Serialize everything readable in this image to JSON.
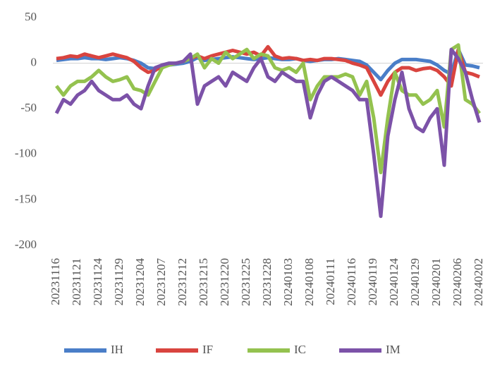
{
  "chart_data": {
    "type": "line",
    "categories": [
      "20231116",
      null,
      null,
      "20231121",
      null,
      null,
      "20231124",
      null,
      null,
      "20231129",
      null,
      null,
      "20231204",
      null,
      null,
      "20231207",
      null,
      null,
      "20231212",
      null,
      null,
      "20231215",
      null,
      null,
      "20231220",
      null,
      null,
      "20231225",
      null,
      null,
      "20231228",
      null,
      null,
      "20240103",
      null,
      null,
      "20240108",
      null,
      null,
      "20240111",
      null,
      null,
      "20240116",
      null,
      null,
      "20240119",
      null,
      null,
      "20240124",
      null,
      null,
      "20240129",
      null,
      null,
      "20240201",
      null,
      null,
      "20240206",
      null,
      null,
      "20240202"
    ],
    "series": [
      {
        "name": "IH",
        "color": "#4a7ec8",
        "values": [
          3,
          4,
          5,
          5,
          6,
          5,
          5,
          4,
          5,
          6,
          5,
          3,
          0,
          -5,
          -6,
          -3,
          -2,
          -1,
          0,
          2,
          6,
          3,
          4,
          5,
          6,
          7,
          6,
          5,
          4,
          5,
          6,
          5,
          4,
          4,
          5,
          3,
          2,
          3,
          4,
          4,
          5,
          4,
          3,
          2,
          -2,
          -10,
          -18,
          -8,
          0,
          4,
          4,
          4,
          3,
          2,
          -2,
          -8,
          -12,
          15,
          -2,
          -3,
          -5
        ]
      },
      {
        "name": "IF",
        "color": "#d9443f",
        "values": [
          5,
          6,
          8,
          7,
          10,
          8,
          6,
          8,
          10,
          8,
          6,
          2,
          -5,
          -10,
          -8,
          -3,
          -1,
          0,
          2,
          5,
          8,
          5,
          8,
          10,
          12,
          14,
          12,
          10,
          12,
          8,
          18,
          8,
          5,
          6,
          5,
          3,
          4,
          3,
          5,
          5,
          4,
          3,
          0,
          -2,
          -5,
          -20,
          -35,
          -20,
          -10,
          -5,
          -5,
          -8,
          -6,
          -5,
          -8,
          -15,
          -25,
          15,
          -10,
          -12,
          -15
        ]
      },
      {
        "name": "IC",
        "color": "#94c24f",
        "values": [
          -25,
          -35,
          -25,
          -20,
          -20,
          -15,
          -8,
          -15,
          -20,
          -18,
          -15,
          -28,
          -30,
          -35,
          -20,
          -5,
          -2,
          0,
          2,
          5,
          10,
          -5,
          5,
          0,
          12,
          5,
          10,
          15,
          5,
          10,
          8,
          -5,
          -8,
          -5,
          -10,
          0,
          -40,
          -25,
          -15,
          -15,
          -15,
          -12,
          -15,
          -35,
          -20,
          -60,
          -120,
          -60,
          -10,
          -30,
          -35,
          -35,
          -45,
          -40,
          -30,
          -70,
          15,
          20,
          -40,
          -45,
          -55
        ]
      },
      {
        "name": "IM",
        "color": "#7c52a8",
        "values": [
          -55,
          -40,
          -45,
          -35,
          -30,
          -20,
          -30,
          -35,
          -40,
          -40,
          -35,
          -45,
          -50,
          -25,
          -5,
          -2,
          0,
          0,
          2,
          10,
          -45,
          -25,
          -20,
          -15,
          -25,
          -10,
          -15,
          -20,
          -5,
          5,
          -15,
          -20,
          -10,
          -15,
          -20,
          -20,
          -60,
          -35,
          -20,
          -15,
          -20,
          -25,
          -30,
          -40,
          -40,
          -100,
          -168,
          -80,
          -40,
          -10,
          -50,
          -70,
          -75,
          -60,
          -50,
          -112,
          15,
          5,
          -10,
          -40,
          -65
        ]
      }
    ],
    "ylim": [
      -200,
      50
    ],
    "yticks": [
      50,
      0,
      -50,
      -100,
      -150,
      -200
    ],
    "legend": "bottom"
  }
}
